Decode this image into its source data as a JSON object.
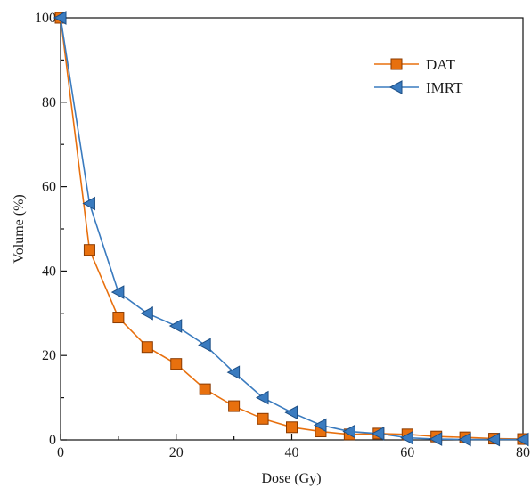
{
  "chart_data": {
    "type": "line",
    "title": "",
    "xlabel": "Dose (Gy)",
    "ylabel": "Volume (%)",
    "xlim": [
      0,
      80
    ],
    "ylim": [
      0,
      100
    ],
    "xticks": [
      0,
      20,
      40,
      60,
      80
    ],
    "yticks": [
      0,
      20,
      40,
      60,
      80,
      100
    ],
    "xtick_labels": [
      "0",
      "20",
      "40",
      "60",
      "80"
    ],
    "ytick_labels": [
      "0",
      "20",
      "40",
      "60",
      "80",
      "100"
    ],
    "grid": false,
    "legend_position": "top-right",
    "series": [
      {
        "name": "DAT",
        "color": "#e8700e",
        "marker": "square",
        "x": [
          0,
          5,
          10,
          15,
          20,
          25,
          30,
          35,
          40,
          45,
          50,
          55,
          60,
          65,
          70,
          75,
          80
        ],
        "y": [
          100,
          45,
          29,
          22,
          18,
          12,
          8,
          5,
          3,
          2,
          1.3,
          1.5,
          1.3,
          0.8,
          0.6,
          0.3,
          0.2
        ]
      },
      {
        "name": "IMRT",
        "color": "#3a7bbf",
        "marker": "triangle-left",
        "x": [
          0,
          5,
          10,
          15,
          20,
          25,
          30,
          35,
          40,
          45,
          50,
          55,
          60,
          65,
          70,
          75,
          80
        ],
        "y": [
          100,
          56,
          35,
          30,
          27,
          22.5,
          16,
          10,
          6.5,
          3.5,
          2,
          1.5,
          0.5,
          0.2,
          0.1,
          0.1,
          0.1
        ]
      }
    ]
  }
}
